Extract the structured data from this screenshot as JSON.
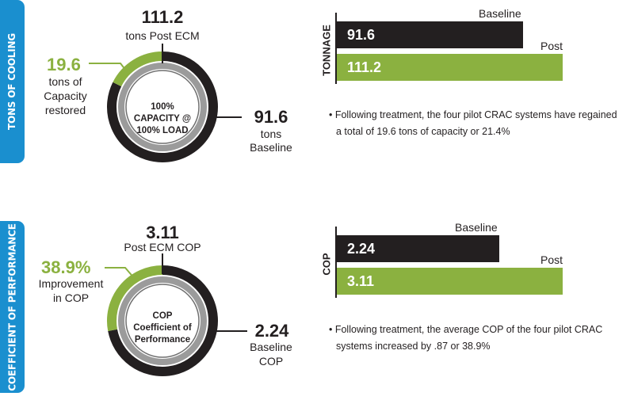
{
  "sections": [
    {
      "tab_label": "TONS OF COOLING",
      "top_value": "111.2",
      "top_label": "tons Post ECM",
      "left_value": "19.6",
      "left_label_lines": [
        "tons of",
        "Capacity",
        "restored"
      ],
      "right_value": "91.6",
      "right_label_lines": [
        "tons",
        "Baseline"
      ],
      "center_lines": [
        "100%",
        "CAPACITY @",
        "100% LOAD"
      ],
      "chart_ylabel": "TONNAGE",
      "note_lines": [
        "• Following treatment, the four pilot CRAC systems have regained",
        "a total of 19.6 tons of capacity or 21.4%"
      ]
    },
    {
      "tab_label": "COEFFICIENT OF PERFORMANCE",
      "top_value": "3.11",
      "top_label": "Post ECM COP",
      "left_value": "38.9%",
      "left_label_lines": [
        "Improvement",
        "in COP"
      ],
      "right_value": "2.24",
      "right_label_lines": [
        "Baseline",
        "COP"
      ],
      "center_lines": [
        "COP",
        "Coefficient of",
        "Performance"
      ],
      "chart_ylabel": "COP",
      "note_lines": [
        "• Following treatment, the average COP of the four pilot CRAC",
        "systems increased by .87 or 38.9%"
      ]
    }
  ],
  "chart_data": [
    {
      "type": "bar",
      "orientation": "horizontal",
      "ylabel": "TONNAGE",
      "series": [
        {
          "name": "Baseline",
          "values": [
            91.6
          ],
          "label": "91.6",
          "color": "#231f20"
        },
        {
          "name": "Post",
          "values": [
            111.2
          ],
          "label": "111.2",
          "color": "#8bb140"
        }
      ],
      "xlim": [
        0,
        111.2
      ]
    },
    {
      "type": "bar",
      "orientation": "horizontal",
      "ylabel": "COP",
      "series": [
        {
          "name": "Baseline",
          "values": [
            2.24
          ],
          "label": "2.24",
          "color": "#231f20"
        },
        {
          "name": "Post",
          "values": [
            3.11
          ],
          "label": "3.11",
          "color": "#8bb140"
        }
      ],
      "xlim": [
        0,
        3.11
      ]
    },
    {
      "type": "pie",
      "title": "TONS OF COOLING",
      "slices": [
        {
          "name": "Baseline",
          "value": 91.6,
          "color": "#231f20"
        },
        {
          "name": "Capacity restored",
          "value": 19.6,
          "color": "#8bb140"
        }
      ]
    },
    {
      "type": "pie",
      "title": "COEFFICIENT OF PERFORMANCE",
      "slices": [
        {
          "name": "Baseline",
          "value": 2.24,
          "color": "#231f20"
        },
        {
          "name": "Improvement",
          "value": 0.87,
          "color": "#8bb140"
        }
      ]
    }
  ],
  "colors": {
    "tab": "#1a8fcf",
    "baseline": "#231f20",
    "post": "#8bb140",
    "ring_gray": "#9b9b9b"
  }
}
